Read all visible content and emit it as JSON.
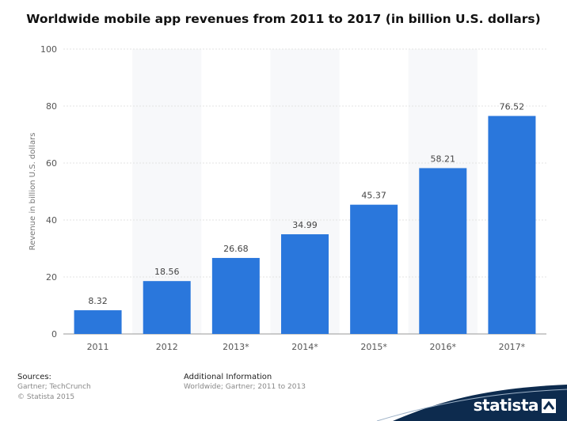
{
  "chart_data": {
    "type": "bar",
    "title": "Worldwide mobile app revenues from 2011 to 2017 (in billion U.S. dollars)",
    "xlabel": "",
    "ylabel": "Revenue in billion U.S. dollars",
    "categories": [
      "2011",
      "2012",
      "2013*",
      "2014*",
      "2015*",
      "2016*",
      "2017*"
    ],
    "values": [
      8.32,
      18.56,
      26.68,
      34.99,
      45.37,
      58.21,
      76.52
    ],
    "value_labels": [
      "8.32",
      "18.56",
      "26.68",
      "34.99",
      "45.37",
      "58.21",
      "76.52"
    ],
    "ylim": [
      0,
      100
    ],
    "yticks": [
      0,
      20,
      40,
      60,
      80,
      100
    ],
    "ytick_labels": [
      "0",
      "20",
      "40",
      "60",
      "80",
      "100"
    ],
    "grid": true,
    "legend": "none",
    "bar_color": "#2a77dc"
  },
  "footer": {
    "sources_heading": "Sources:",
    "sources_line1": "Gartner; TechCrunch",
    "sources_line2": "© Statista 2015",
    "additional_heading": "Additional Information",
    "additional_line1": "Worldwide; Gartner; 2011 to 2013"
  },
  "brand": {
    "name": "statista",
    "color": "#0d2b4e"
  }
}
